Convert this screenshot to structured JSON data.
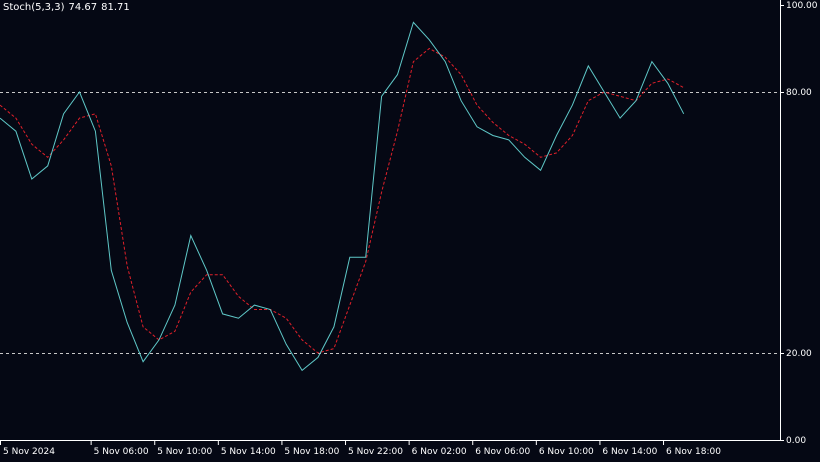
{
  "indicator": {
    "name": "Stoch(5,3,3)",
    "main_value": "74.67",
    "signal_value": "81.71"
  },
  "colors": {
    "background": "#050814",
    "axis": "#ffffff",
    "main_line": "#5fc8c8",
    "signal_line": "#e0202a",
    "level_line": "#c8c8c8"
  },
  "chart_data": {
    "type": "line",
    "title": "",
    "xlabel": "",
    "ylabel": "",
    "ylim": [
      0,
      100
    ],
    "y_ticks": [
      "100.00",
      "80.00",
      "20.00",
      "0.00"
    ],
    "y_tick_values": [
      100,
      80,
      20,
      0
    ],
    "levels": [
      80,
      20
    ],
    "x_tick_labels": [
      "5 Nov 2024",
      "5 Nov 06:00",
      "5 Nov 10:00",
      "5 Nov 14:00",
      "5 Nov 18:00",
      "5 Nov 22:00",
      "6 Nov 02:00",
      "6 Nov 06:00",
      "6 Nov 10:00",
      "6 Nov 14:00",
      "6 Nov 18:00"
    ],
    "x_tick_index": [
      0,
      5.7,
      9.7,
      13.7,
      17.7,
      21.7,
      25.7,
      29.7,
      33.7,
      37.7,
      41.7
    ],
    "n_points": 44,
    "series": [
      {
        "name": "Main",
        "style": "solid",
        "values": [
          74,
          71,
          60,
          63,
          75,
          80,
          71,
          39,
          27,
          18,
          23,
          31,
          47,
          39,
          29,
          28,
          31,
          30,
          22,
          16,
          19,
          26,
          42,
          42,
          79,
          84,
          96,
          92,
          87,
          78,
          72,
          70,
          69,
          65,
          62,
          70,
          77,
          86,
          80,
          74,
          78,
          87,
          82,
          75
        ]
      },
      {
        "name": "Signal",
        "style": "dashed",
        "values": [
          77,
          74,
          68,
          65,
          69,
          74,
          75,
          63,
          40,
          26,
          23,
          25,
          34,
          38,
          38,
          33,
          30,
          30,
          28,
          23,
          20,
          21,
          31,
          41,
          57,
          71,
          87,
          90,
          88,
          84,
          77,
          73,
          70,
          68,
          65,
          66,
          70,
          78,
          80,
          79,
          78,
          82,
          83,
          81
        ]
      }
    ]
  }
}
